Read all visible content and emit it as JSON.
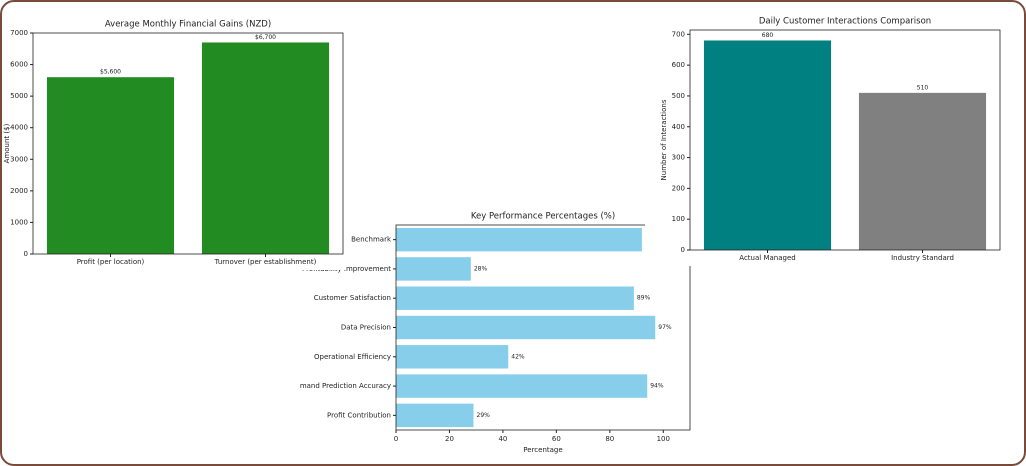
{
  "chart_data": [
    {
      "type": "bar",
      "title": "Average Monthly Financial Gains (NZD)",
      "y_label": "Amount ($)",
      "categories": [
        "Profit (per location)",
        "Turnover (per establishment)"
      ],
      "values": [
        5600,
        6700
      ],
      "value_labels": [
        "$5,600",
        "$6,700"
      ],
      "color": "#228b22",
      "ylim": [
        0,
        7000
      ],
      "yticks": [
        0,
        1000,
        2000,
        3000,
        4000,
        5000,
        6000,
        7000
      ]
    },
    {
      "type": "bar",
      "title": "Daily Customer Interactions Comparison",
      "y_label": "Number of Interactions",
      "categories": [
        "Actual Managed",
        "Industry Standard"
      ],
      "values": [
        680,
        510
      ],
      "value_labels": [
        "680",
        "510"
      ],
      "colors": [
        "#008080",
        "#808080"
      ],
      "ylim": [
        0,
        714
      ],
      "yticks": [
        0,
        100,
        200,
        300,
        400,
        500,
        600,
        700
      ]
    },
    {
      "type": "hbar",
      "title": "Key Performance Percentages (%)",
      "x_label": "Percentage",
      "categories": [
        "Profit Contribution",
        "Demand Prediction Accuracy",
        "Operational Efficiency",
        "Data Precision",
        "Customer Satisfaction",
        "Profitability Improvement",
        "Benchmark"
      ],
      "values": [
        29,
        94,
        42,
        97,
        89,
        28,
        92
      ],
      "value_labels": [
        "29%",
        "94%",
        "42%",
        "97%",
        "89%",
        "28%",
        null
      ],
      "color": "#87ceeb",
      "xlim": [
        0,
        110
      ],
      "xticks": [
        0,
        20,
        40,
        60,
        80,
        100
      ]
    }
  ]
}
